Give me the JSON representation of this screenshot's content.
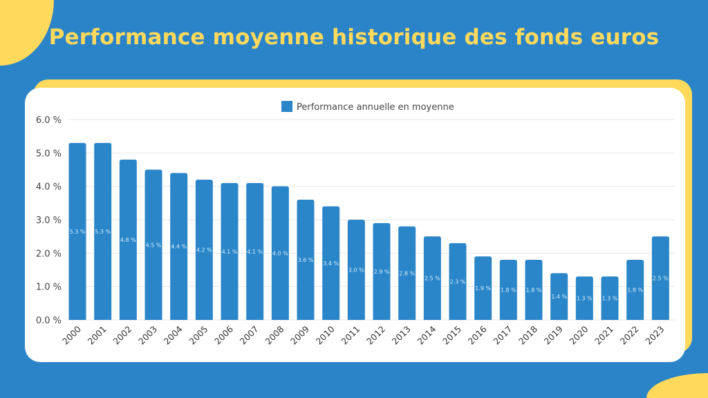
{
  "title": "Performance moyenne historique des fonds euros",
  "colors": {
    "background": "#2a84c7",
    "accent": "#ffd95c",
    "bar": "#2a86c8"
  },
  "chart_data": {
    "type": "bar",
    "title": "Performance moyenne historique des fonds euros",
    "legend": {
      "entries": [
        "Performance annuelle en moyenne"
      ],
      "placement": "top-center"
    },
    "categories": [
      "2000",
      "2001",
      "2002",
      "2003",
      "2004",
      "2005",
      "2006",
      "2007",
      "2008",
      "2009",
      "2010",
      "2011",
      "2012",
      "2013",
      "2014",
      "2015",
      "2016",
      "2017",
      "2018",
      "2019",
      "2020",
      "2021",
      "2022",
      "2023"
    ],
    "series": [
      {
        "name": "Performance annuelle en moyenne",
        "values": [
          5.3,
          5.3,
          4.8,
          4.5,
          4.4,
          4.2,
          4.1,
          4.1,
          4.0,
          3.6,
          3.4,
          3.0,
          2.9,
          2.8,
          2.5,
          2.3,
          1.9,
          1.8,
          1.8,
          1.4,
          1.3,
          1.3,
          1.8,
          2.5
        ]
      }
    ],
    "data_labels": [
      "5.3 %",
      "5.3 %",
      "4.8 %",
      "4.5 %",
      "4.4 %",
      "4.2 %",
      "4.1 %",
      "4.1 %",
      "4.0 %",
      "3.6 %",
      "3.4 %",
      "3.0 %",
      "2.9 %",
      "2.8 %",
      "2.5 %",
      "2.3 %",
      "1.9 %",
      "1.8 %",
      "1.8 %",
      "1.4 %",
      "1.3 %",
      "1.3 %",
      "1.8 %",
      "2.5 %"
    ],
    "yticks": [
      "0.0 %",
      "1.0 %",
      "2.0 %",
      "3.0 %",
      "4.0 %",
      "5.0 %",
      "6.0 %"
    ],
    "ylim": [
      0,
      6
    ],
    "xlabel": "",
    "ylabel": "",
    "grid": true
  }
}
